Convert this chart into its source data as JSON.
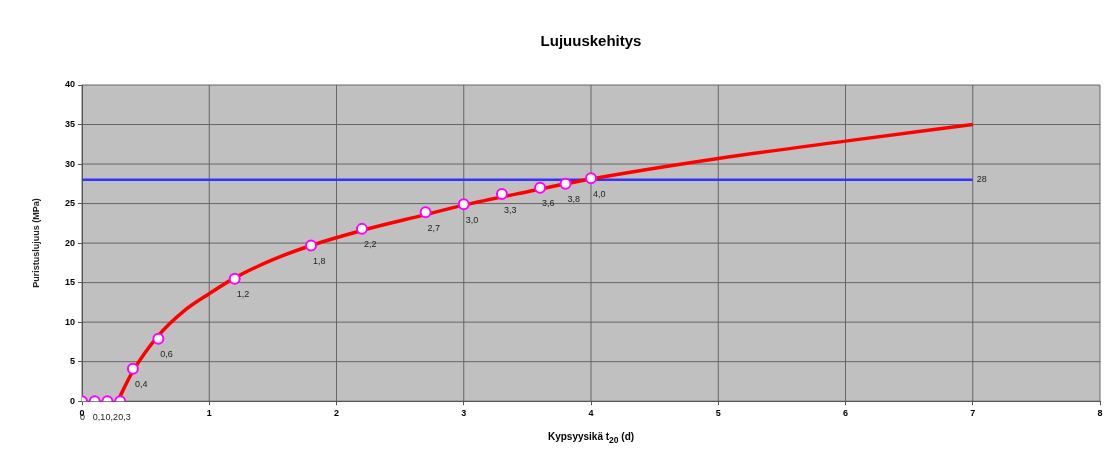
{
  "chart_data": {
    "type": "scatter",
    "title": "Lujuuskehitys",
    "xlabel": "Kypsyysikä t$_{20}$ (d)",
    "ylabel": "Puristuslujuus (MPa)",
    "xlim": [
      0,
      8
    ],
    "xticks": [
      0,
      1,
      2,
      3,
      4,
      5,
      6,
      7,
      8
    ],
    "ylim": [
      0,
      40
    ],
    "yticks": [
      0,
      5,
      10,
      15,
      20,
      25,
      30,
      35,
      40
    ],
    "grid": true,
    "legend": false,
    "series": [
      {
        "type": "line",
        "color": "#ff0000",
        "marker": "none",
        "x": [
          0.28,
          0.4,
          0.6,
          0.8,
          1,
          1.2,
          1.5,
          1.8,
          2.2,
          2.7,
          3,
          3.5,
          4,
          5,
          6,
          7
        ],
        "values": [
          0,
          3.8,
          8.3,
          11.4,
          13.6,
          15.6,
          17.9,
          19.7,
          21.6,
          23.6,
          24.8,
          26.5,
          28.1,
          30.7,
          32.9,
          35
        ]
      },
      {
        "type": "line",
        "color": "#3333ff",
        "marker": "none",
        "x": [
          0,
          7
        ],
        "values": [
          28,
          28
        ],
        "value_labels": [
          null,
          "28"
        ]
      },
      {
        "type": "scatter",
        "color": "#ff00ff",
        "marker": "circle",
        "x": [
          0,
          0.1,
          0.2,
          0.3,
          0.4,
          0.6,
          1.2,
          1.8,
          2.2,
          2.7,
          3.0,
          3.3,
          3.6,
          3.8,
          4.0
        ],
        "values": [
          0,
          0,
          0,
          0,
          4.1,
          7.9,
          15.5,
          19.7,
          21.8,
          23.9,
          24.9,
          26.2,
          27.0,
          27.5,
          28.2
        ]
      }
    ],
    "annotations": [
      {
        "text": "0",
        "x": 0,
        "y": 0
      },
      {
        "text": "0,1",
        "x": 0.1,
        "y": 0
      },
      {
        "text": "0,2",
        "x": 0.2,
        "y": 0
      },
      {
        "text": "0,3",
        "x": 0.3,
        "y": 0
      },
      {
        "text": "0,4",
        "x": 0.4,
        "y": 4.1
      },
      {
        "text": "0,6",
        "x": 0.6,
        "y": 7.9
      },
      {
        "text": "1,2",
        "x": 1.2,
        "y": 15.5
      },
      {
        "text": "1,8",
        "x": 1.8,
        "y": 19.7
      },
      {
        "text": "2,2",
        "x": 2.2,
        "y": 21.8
      },
      {
        "text": "2,7",
        "x": 2.7,
        "y": 23.9
      },
      {
        "text": "3,0",
        "x": 3.0,
        "y": 24.9
      },
      {
        "text": "3,3",
        "x": 3.3,
        "y": 26.2
      },
      {
        "text": "3,6",
        "x": 3.6,
        "y": 27.0
      },
      {
        "text": "3,8",
        "x": 3.8,
        "y": 27.5
      },
      {
        "text": "4,0",
        "x": 4.0,
        "y": 28.2
      }
    ]
  }
}
